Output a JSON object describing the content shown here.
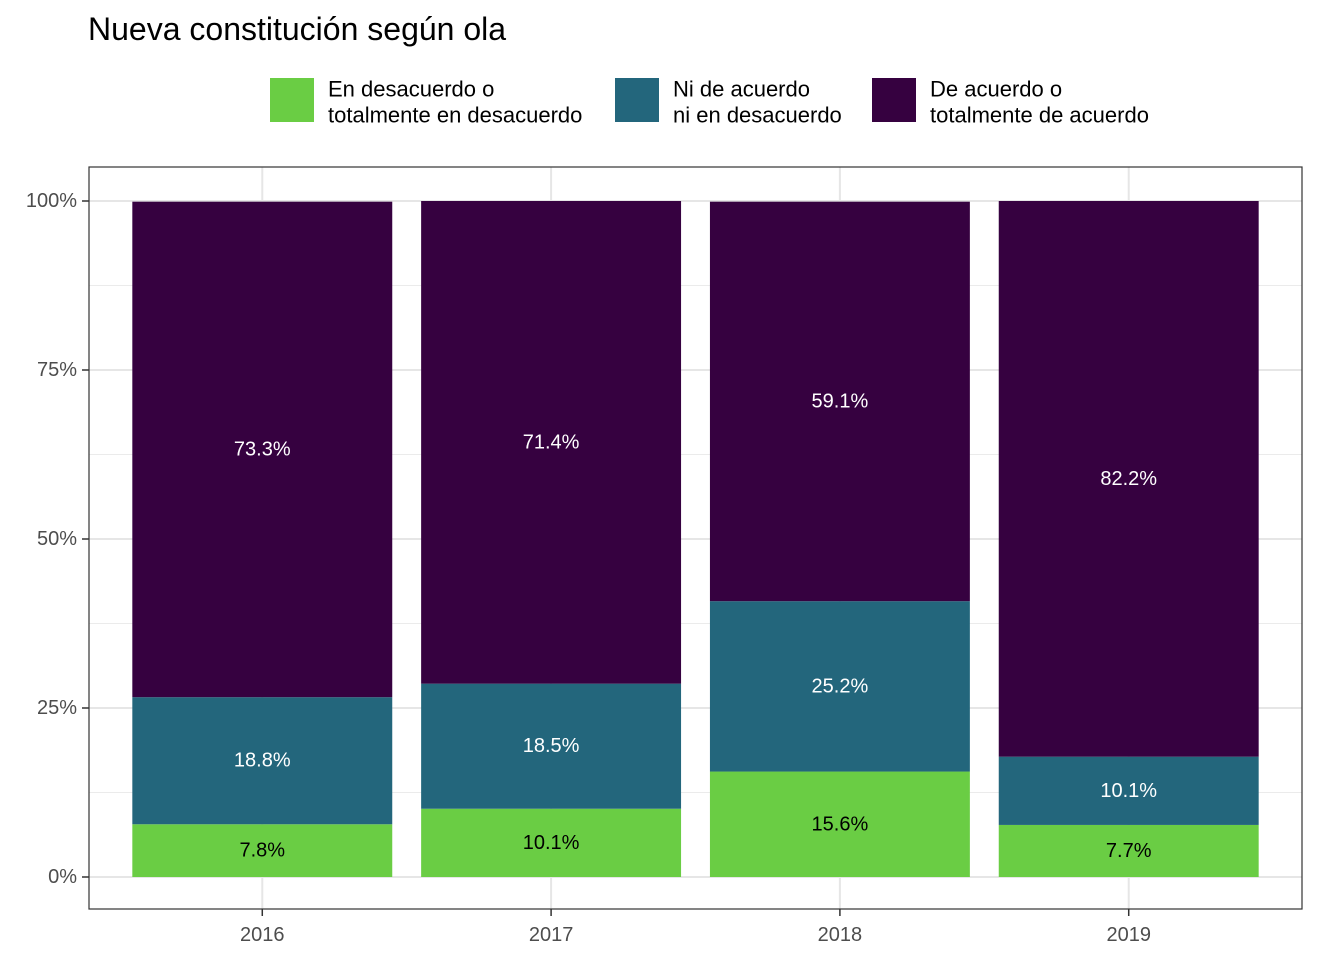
{
  "chart_data": {
    "type": "bar",
    "stacked": true,
    "title": "Nueva constitución según ola",
    "xlabel": "",
    "ylabel": "",
    "categories": [
      "2016",
      "2017",
      "2018",
      "2019"
    ],
    "y_ticks": [
      "0%",
      "25%",
      "50%",
      "75%",
      "100%"
    ],
    "ylim": [
      0,
      100
    ],
    "legend_position": "top",
    "grid": true,
    "series": [
      {
        "name": "En desacuerdo o totalmente en desacuerdo",
        "legend_lines": [
          "En desacuerdo o",
          "totalmente en desacuerdo"
        ],
        "color": "#6ACD44",
        "label_color": "#000000",
        "values": [
          7.8,
          10.1,
          15.6,
          7.7
        ],
        "labels": [
          "7.8%",
          "10.1%",
          "15.6%",
          "7.7%"
        ]
      },
      {
        "name": "Ni de acuerdo ni en desacuerdo",
        "legend_lines": [
          "Ni de acuerdo",
          "ni en desacuerdo"
        ],
        "color": "#23667C",
        "label_color": "#ffffff",
        "values": [
          18.8,
          18.5,
          25.2,
          10.1
        ],
        "labels": [
          "18.8%",
          "18.5%",
          "25.2%",
          "10.1%"
        ]
      },
      {
        "name": "De acuerdo o totalmente de acuerdo",
        "legend_lines": [
          "De acuerdo o",
          "totalmente de acuerdo"
        ],
        "color": "#360140",
        "label_color": "#ffffff",
        "values": [
          73.3,
          71.4,
          59.1,
          82.2
        ],
        "labels": [
          "73.3%",
          "71.4%",
          "59.1%",
          "82.2%"
        ]
      }
    ]
  }
}
